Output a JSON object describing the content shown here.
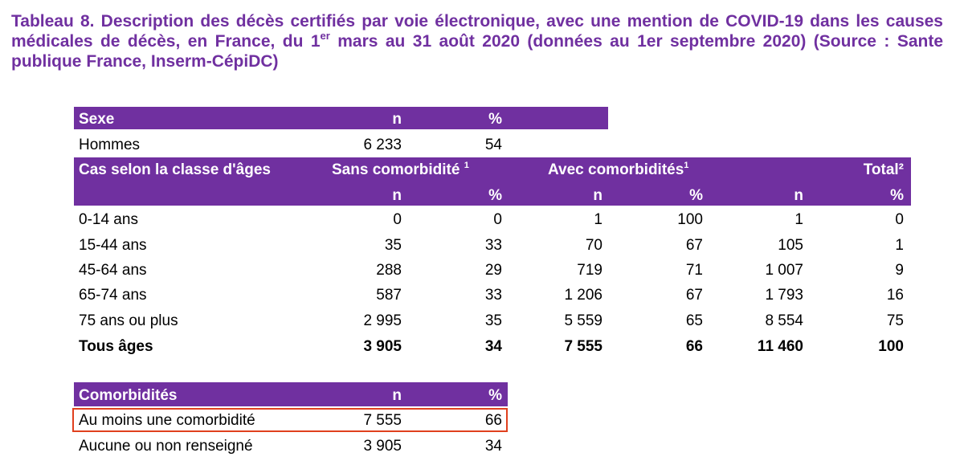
{
  "title": {
    "part1": "Tableau 8. Description des décès certifiés par voie électronique, avec une mention de COVID-19 dans les causes médicales de décès, en France, du 1",
    "sup": "er",
    "part2": " mars au 31 août 2020 (données au 1er septembre 2020) (Source : Sante publique France, Inserm-CépiDC)"
  },
  "sexe": {
    "header": {
      "label": "Sexe",
      "n": "n",
      "pct": "%"
    },
    "rows": [
      {
        "label": "Hommes",
        "n": "6 233",
        "pct": "54"
      }
    ]
  },
  "age": {
    "header": {
      "label": "Cas selon la classe d'âges",
      "sans": "Sans comorbidité ",
      "sans_sup": "1",
      "avec": "Avec comorbidités",
      "avec_sup": "1",
      "total": "Total²",
      "n": "n",
      "pct": "%"
    },
    "rows": [
      {
        "label": "0-14 ans",
        "sans_n": "0",
        "sans_pct": "0",
        "avec_n": "1",
        "avec_pct": "100",
        "total_n": "1",
        "total_pct": "0"
      },
      {
        "label": "15-44 ans",
        "sans_n": "35",
        "sans_pct": "33",
        "avec_n": "70",
        "avec_pct": "67",
        "total_n": "105",
        "total_pct": "1"
      },
      {
        "label": "45-64 ans",
        "sans_n": "288",
        "sans_pct": "29",
        "avec_n": "719",
        "avec_pct": "71",
        "total_n": "1 007",
        "total_pct": "9"
      },
      {
        "label": "65-74 ans",
        "sans_n": "587",
        "sans_pct": "33",
        "avec_n": "1 206",
        "avec_pct": "67",
        "total_n": "1 793",
        "total_pct": "16"
      },
      {
        "label": "75 ans ou plus",
        "sans_n": "2 995",
        "sans_pct": "35",
        "avec_n": "5 559",
        "avec_pct": "65",
        "total_n": "8 554",
        "total_pct": "75"
      }
    ],
    "total": {
      "label": "Tous âges",
      "sans_n": "3 905",
      "sans_pct": "34",
      "avec_n": "7 555",
      "avec_pct": "66",
      "total_n": "11 460",
      "total_pct": "100"
    }
  },
  "comorb": {
    "header": {
      "label": "Comorbidités",
      "n": "n",
      "pct": "%"
    },
    "rows": [
      {
        "label": "Au moins une comorbidité",
        "n": "7 555",
        "pct": "66"
      },
      {
        "label": "Aucune ou non renseigné",
        "n": "3 905",
        "pct": "34"
      }
    ]
  },
  "colors": {
    "header_bg": "#7030a0",
    "title": "#7030a0",
    "highlight": "#e0401e"
  }
}
